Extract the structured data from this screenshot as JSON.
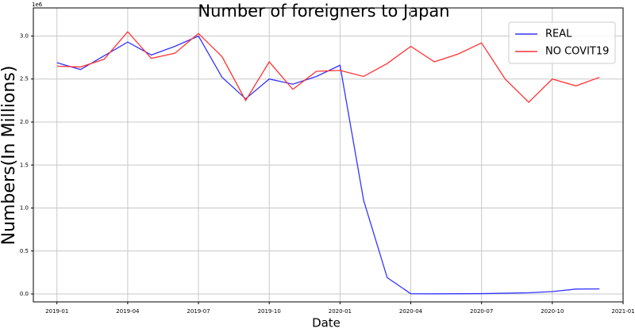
{
  "chart_data": {
    "type": "line",
    "title": "Number of foreigners to Japan",
    "x_label": "Date",
    "y_label": "Numbers(In Millions)",
    "y_offset_label": "1e6",
    "x": [
      "2019-01",
      "2019-02",
      "2019-03",
      "2019-04",
      "2019-05",
      "2019-06",
      "2019-07",
      "2019-08",
      "2019-09",
      "2019-10",
      "2019-11",
      "2019-12",
      "2020-01",
      "2020-02",
      "2020-03",
      "2020-04",
      "2020-05",
      "2020-06",
      "2020-07",
      "2020-08",
      "2020-09",
      "2020-10",
      "2020-11",
      "2020-12"
    ],
    "series": [
      {
        "name": "REAL",
        "color": "#3333ff",
        "values": [
          2690000,
          2610000,
          2770000,
          2930000,
          2780000,
          2880000,
          3000000,
          2520000,
          2270000,
          2500000,
          2440000,
          2530000,
          2660000,
          1090000,
          190000,
          3000,
          2000,
          3000,
          4000,
          9000,
          14000,
          28000,
          57000,
          59000
        ]
      },
      {
        "name": "NO COVIT19",
        "color": "#ff3333",
        "values": [
          2650000,
          2640000,
          2730000,
          3050000,
          2740000,
          2800000,
          3030000,
          2760000,
          2250000,
          2700000,
          2380000,
          2590000,
          2600000,
          2530000,
          2680000,
          2880000,
          2700000,
          2790000,
          2920000,
          2500000,
          2230000,
          2500000,
          2420000,
          2520000
        ]
      }
    ],
    "xlim": [
      "2018-12",
      "2021-01"
    ],
    "xticks": [
      "2019-01",
      "2019-04",
      "2019-07",
      "2019-10",
      "2020-01",
      "2020-04",
      "2020-07",
      "2020-10",
      "2021-01"
    ],
    "ylim": [
      -92000,
      3327000
    ],
    "yticks": [
      {
        "value": 0,
        "label": "0.0"
      },
      {
        "value": 500000,
        "label": "0.5"
      },
      {
        "value": 1000000,
        "label": "1.0"
      },
      {
        "value": 1500000,
        "label": "1.5"
      },
      {
        "value": 2000000,
        "label": "2.0"
      },
      {
        "value": 2500000,
        "label": "2.5"
      },
      {
        "value": 3000000,
        "label": "3.0"
      }
    ],
    "grid": true,
    "legend": "upper-right"
  }
}
